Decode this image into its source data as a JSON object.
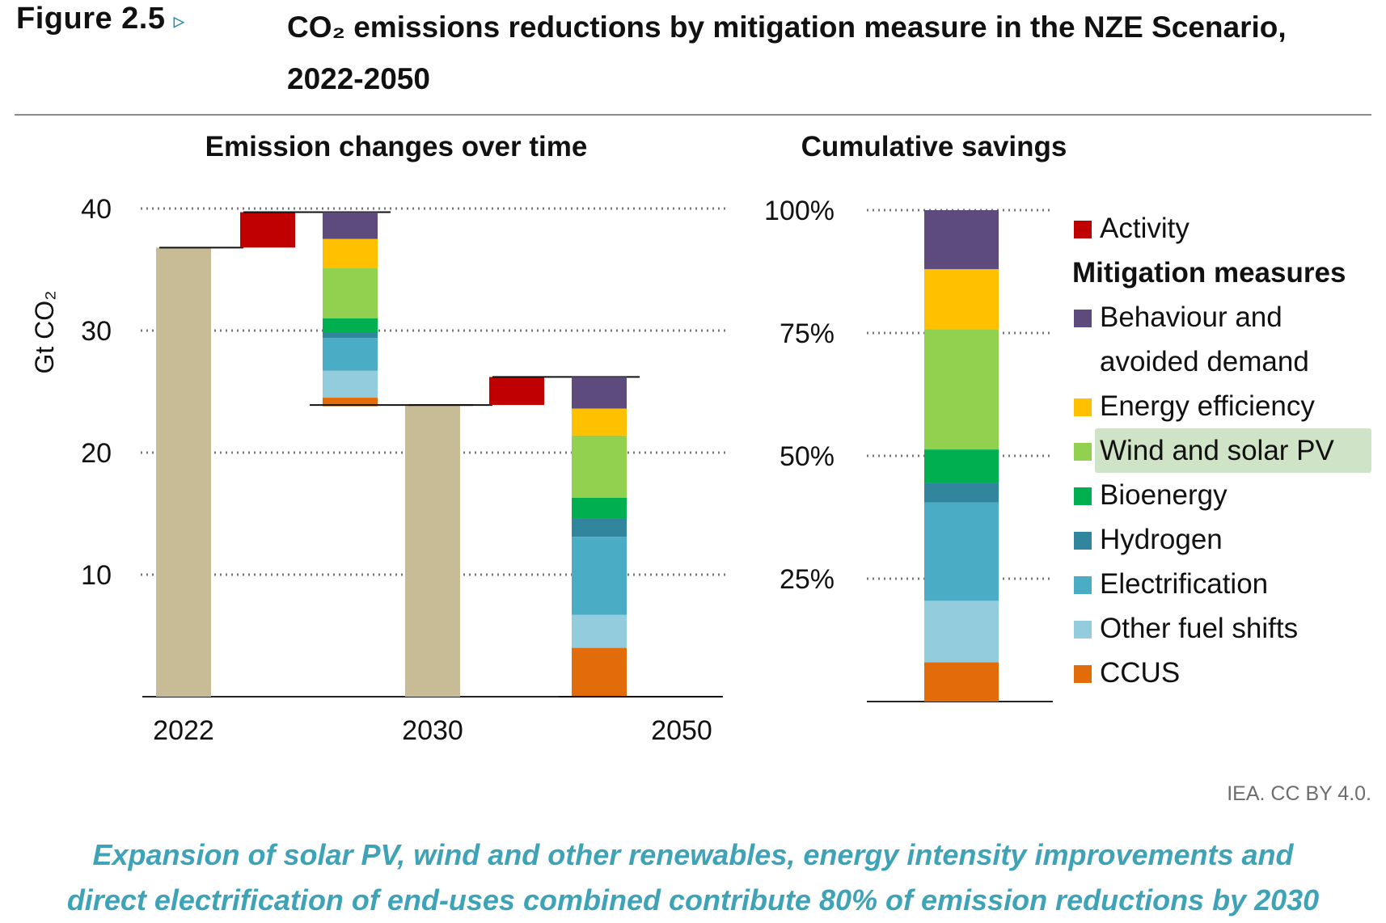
{
  "header": {
    "figure_label": "Figure 2.5",
    "figure_arrow": "▹",
    "title": "CO₂ emissions reductions by mitigation measure in the NZE Scenario, 2022-2050"
  },
  "panels": {
    "left_title": "Emission changes over time",
    "right_title": "Cumulative savings"
  },
  "legend": {
    "activity_label": "Activity",
    "group_title": "Mitigation measures",
    "items": [
      {
        "label": "Behaviour and avoided demand",
        "color": "#5e4b7d"
      },
      {
        "label": "Energy efficiency",
        "color": "#ffc000"
      },
      {
        "label": "Wind and solar PV",
        "color": "#92d050",
        "highlight": true
      },
      {
        "label": "Bioenergy",
        "color": "#00b050"
      },
      {
        "label": "Hydrogen",
        "color": "#31859c"
      },
      {
        "label": "Electrification",
        "color": "#4bacc6"
      },
      {
        "label": "Other fuel shifts",
        "color": "#93cddd"
      },
      {
        "label": "CCUS",
        "color": "#e36c0a"
      }
    ],
    "activity_color": "#c00000"
  },
  "source": "IEA. CC BY 4.0.",
  "caption": {
    "line1": "Expansion of solar PV, wind and other renewables, energy intensity improvements and",
    "line2": "direct electrification of end-uses combined contribute 80% of emission reductions by 2030"
  },
  "chart_data": [
    {
      "type": "bar",
      "subtype": "waterfall",
      "title": "Emission changes over time",
      "ylabel": "Gt CO₂",
      "ylim": [
        0,
        40
      ],
      "yticks": [
        10,
        20,
        30,
        40
      ],
      "xticks": [
        "2022",
        "2030",
        "2050"
      ],
      "grid": true,
      "total_color": "#c8bc96",
      "totals": [
        {
          "year": "2022",
          "value": 36.8
        },
        {
          "year": "2030",
          "value": 23.9
        },
        {
          "year": "2050",
          "value": 0
        }
      ],
      "steps": [
        {
          "from": "2022",
          "to": "2030",
          "activity": 2.9,
          "reductions": [
            {
              "measure": "Behaviour and avoided demand",
              "value": 2.2
            },
            {
              "measure": "Energy efficiency",
              "value": 2.4
            },
            {
              "measure": "Wind and solar PV",
              "value": 4.1
            },
            {
              "measure": "Bioenergy",
              "value": 1.2
            },
            {
              "measure": "Hydrogen",
              "value": 0.4
            },
            {
              "measure": "Electrification",
              "value": 2.7
            },
            {
              "measure": "Other fuel shifts",
              "value": 2.2
            },
            {
              "measure": "CCUS",
              "value": 0.7
            }
          ]
        },
        {
          "from": "2030",
          "to": "2050",
          "activity": 2.3,
          "reductions": [
            {
              "measure": "Behaviour and avoided demand",
              "value": 2.6
            },
            {
              "measure": "Energy efficiency",
              "value": 2.2
            },
            {
              "measure": "Wind and solar PV",
              "value": 5.1
            },
            {
              "measure": "Bioenergy",
              "value": 1.7
            },
            {
              "measure": "Hydrogen",
              "value": 1.5
            },
            {
              "measure": "Electrification",
              "value": 6.4
            },
            {
              "measure": "Other fuel shifts",
              "value": 2.7
            },
            {
              "measure": "CCUS",
              "value": 4.0
            }
          ]
        }
      ]
    },
    {
      "type": "bar",
      "subtype": "stacked_100",
      "title": "Cumulative savings",
      "ylim": [
        0,
        100
      ],
      "yticks": [
        "25%",
        "50%",
        "75%",
        "100%"
      ],
      "grid": true,
      "series": [
        {
          "name": "CCUS",
          "value": 8
        },
        {
          "name": "Other fuel shifts",
          "value": 12.5
        },
        {
          "name": "Electrification",
          "value": 20
        },
        {
          "name": "Hydrogen",
          "value": 4
        },
        {
          "name": "Bioenergy",
          "value": 6.8
        },
        {
          "name": "Wind and solar PV",
          "value": 24.5
        },
        {
          "name": "Energy efficiency",
          "value": 12.2
        },
        {
          "name": "Behaviour and avoided demand",
          "value": 12
        }
      ]
    }
  ]
}
